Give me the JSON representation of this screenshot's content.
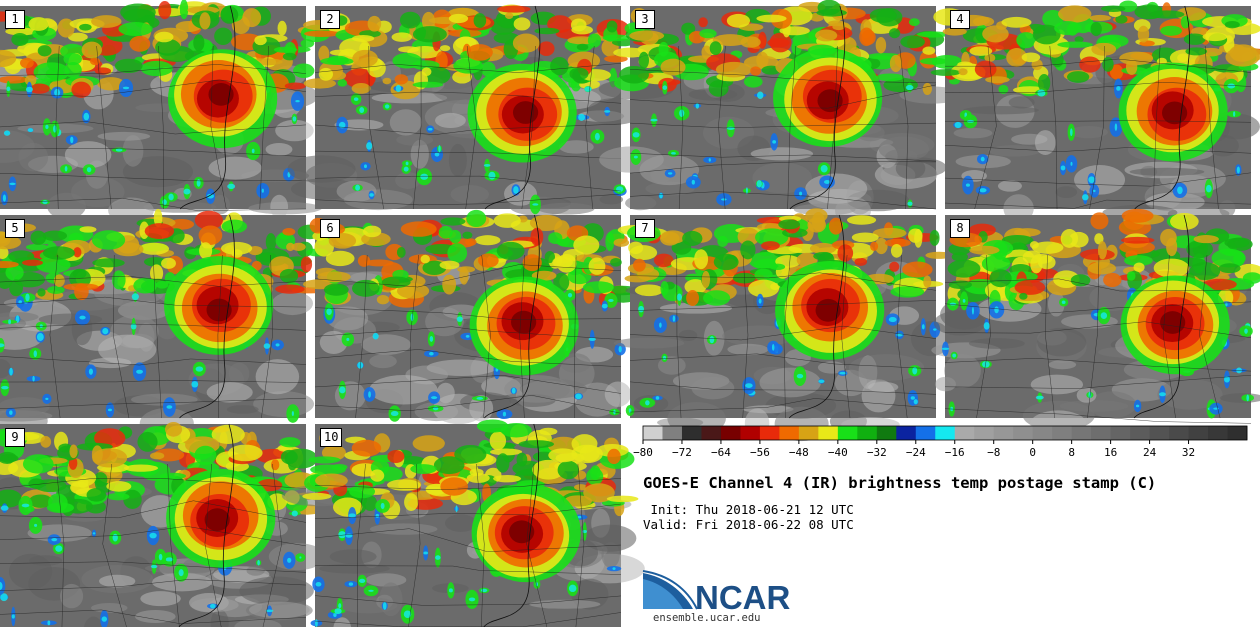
{
  "panels": [
    "1",
    "2",
    "3",
    "4",
    "5",
    "6",
    "7",
    "8",
    "9",
    "10"
  ],
  "colorbar": {
    "colors": [
      "#d0d0d0",
      "#808080",
      "#2e2e2e",
      "#4a1818",
      "#780000",
      "#b00000",
      "#e82a0a",
      "#ef6a00",
      "#d7a315",
      "#e8e818",
      "#18e018",
      "#10b010",
      "#107a10",
      "#0b23a0",
      "#1470e8",
      "#15e8f0",
      "#aaaaaa",
      "#a0a0a0",
      "#979797",
      "#8f8f8f",
      "#878787",
      "#7f7f7f",
      "#767676",
      "#6e6e6e",
      "#656565",
      "#5c5c5c",
      "#535353",
      "#4a4a4a",
      "#414141",
      "#383838",
      "#2f2f2f"
    ],
    "ticks": [
      "-80",
      "-72",
      "-64",
      "-56",
      "-48",
      "-40",
      "-32",
      "-24",
      "-16",
      "-8",
      "0",
      "8",
      "16",
      "24",
      "32"
    ]
  },
  "title": "GOES-E Channel 4 (IR) brightness temp postage stamp (C)",
  "init": " Init: Thu 2018-06-21 12 UTC",
  "valid": "Valid: Fri 2018-06-22 08 UTC",
  "logo_text": "NCAR",
  "url": "ensemble.ucar.edu"
}
